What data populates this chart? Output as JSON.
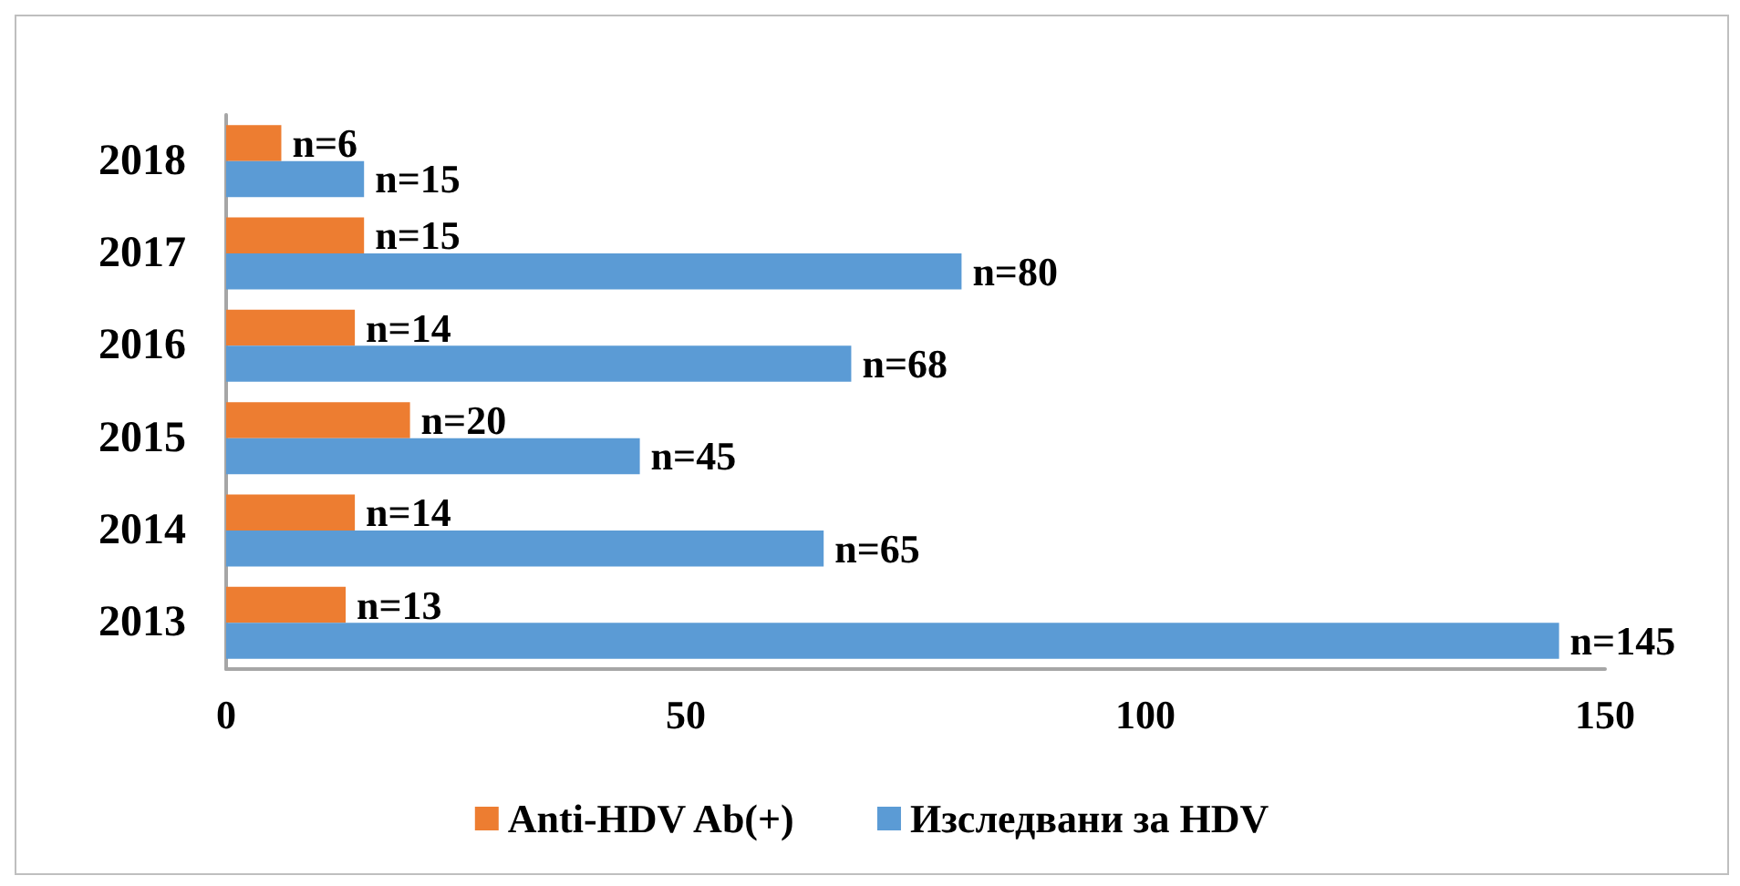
{
  "chart_data": {
    "type": "bar",
    "orientation": "horizontal",
    "categories": [
      "2018",
      "2017",
      "2016",
      "2015",
      "2014",
      "2013"
    ],
    "series": [
      {
        "name": "Anti-HDV Ab(+)",
        "color": "#ed7d31",
        "values": [
          6,
          15,
          14,
          20,
          14,
          13
        ],
        "value_labels": [
          "n=6",
          "n=15",
          "n=14",
          "n=20",
          "n=14",
          "n=13"
        ]
      },
      {
        "name": "Изследвани за HDV",
        "color": "#5b9bd5",
        "values": [
          15,
          80,
          68,
          45,
          65,
          145
        ],
        "value_labels": [
          "n=15",
          "n=80",
          "n=68",
          "n=45",
          "n=65",
          "n=145"
        ]
      }
    ],
    "xlim": [
      0,
      150
    ],
    "xticks": [
      0,
      50,
      100,
      150
    ],
    "legend": "bottom",
    "grid": false
  }
}
